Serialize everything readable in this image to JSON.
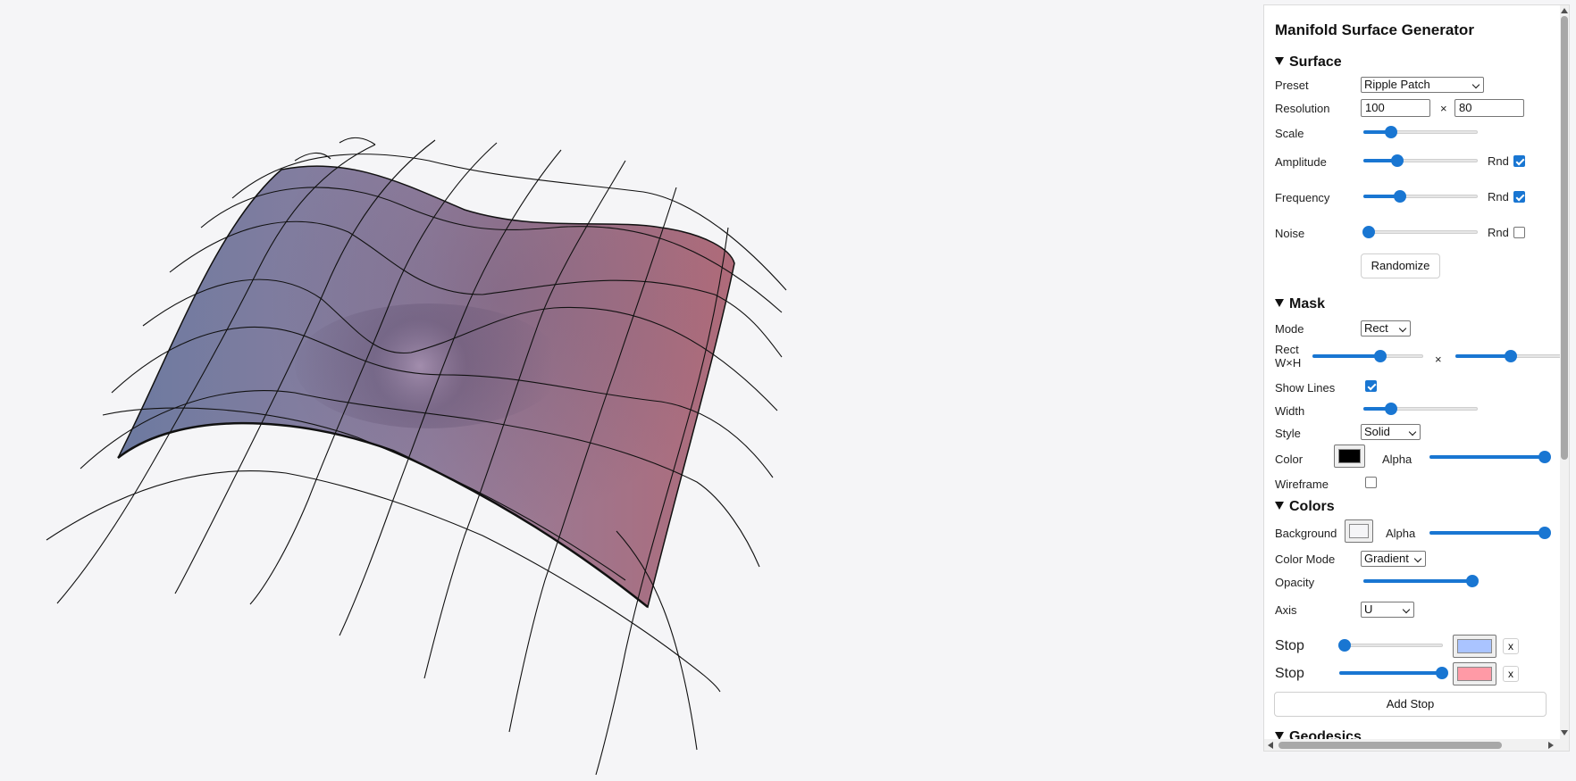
{
  "panel": {
    "title": "Manifold Surface Generator",
    "surface": {
      "heading": "Surface",
      "preset_label": "Preset",
      "preset_value": "Ripple Patch",
      "resolution_label": "Resolution",
      "resolution_u": "100",
      "resolution_times": "×",
      "resolution_v": "80",
      "scale_label": "Scale",
      "scale_level": 0.24,
      "amplitude_label": "Amplitude",
      "amplitude_level": 0.3,
      "amplitude_rnd_label": "Rnd",
      "amplitude_rnd_checked": true,
      "frequency_label": "Frequency",
      "frequency_level": 0.32,
      "frequency_rnd_label": "Rnd",
      "frequency_rnd_checked": true,
      "noise_label": "Noise",
      "noise_level": 0.05,
      "noise_rnd_label": "Rnd",
      "noise_rnd_checked": false,
      "randomize_label": "Randomize"
    },
    "mask": {
      "heading": "Mask",
      "mode_label": "Mode",
      "mode_value": "Rect",
      "rect_label_line1": "Rect",
      "rect_label_line2": "W×H",
      "rect_w_level": 0.61,
      "rect_times": "×",
      "rect_h_level": 0.5,
      "show_lines_label": "Show Lines",
      "show_lines_checked": true,
      "width_label": "Width",
      "width_level": 0.24,
      "style_label": "Style",
      "style_value": "Solid",
      "color_label": "Color",
      "color_value": "#000000",
      "alpha_label": "Alpha",
      "alpha_level": 0.99,
      "wireframe_label": "Wireframe",
      "wireframe_checked": false
    },
    "colors": {
      "heading": "Colors",
      "background_label": "Background",
      "background_value": "#f5f5f7",
      "alpha_label": "Alpha",
      "alpha_level": 0.99,
      "color_mode_label": "Color Mode",
      "color_mode_value": "Gradient",
      "opacity_label": "Opacity",
      "opacity_level": 0.95,
      "axis_label": "Axis",
      "axis_value": "U",
      "stops": [
        {
          "label": "Stop",
          "level": 0.05,
          "color": "#aac4ff",
          "remove_label": "x"
        },
        {
          "label": "Stop",
          "level": 0.99,
          "color": "#ff9aa6",
          "remove_label": "x"
        }
      ],
      "add_stop_label": "Add Stop"
    },
    "geodesics": {
      "heading": "Geodesics"
    }
  },
  "colors": {
    "accent": "#1976d2",
    "gradient_start": "#6c7aa0",
    "gradient_end": "#b06a78"
  }
}
